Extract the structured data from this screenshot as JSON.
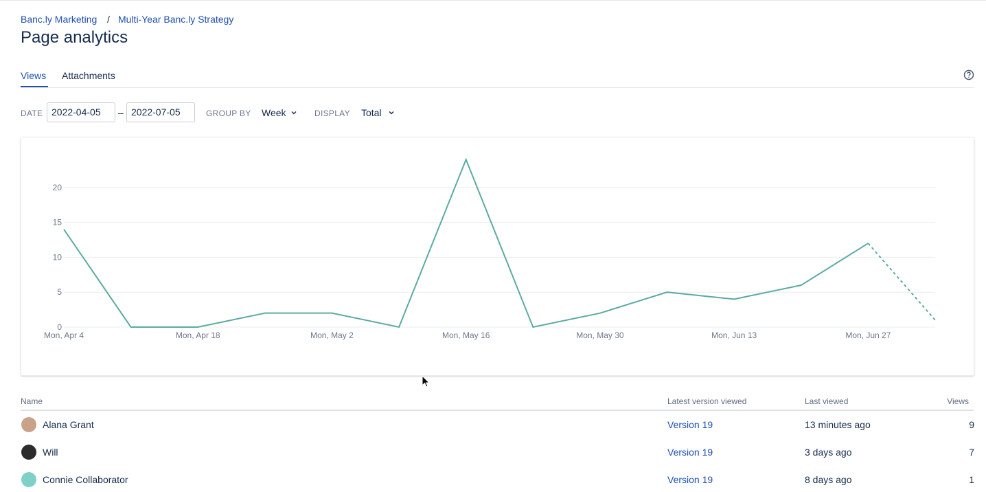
{
  "breadcrumbs": [
    "Banc.ly Marketing",
    "Multi-Year Banc.ly Strategy"
  ],
  "breadcrumb_separator": "/",
  "title": "Page analytics",
  "tabs": [
    "Views",
    "Attachments"
  ],
  "filters": {
    "date_label": "DATE",
    "date_from": "2022-04-05",
    "date_separator": "–",
    "date_to": "2022-07-05",
    "group_by_label": "GROUP BY",
    "group_by": "Week",
    "display_label": "DISPLAY",
    "display": "Total"
  },
  "chart_data": {
    "type": "line",
    "categories": [
      "Mon, Apr 4",
      null,
      "Mon, Apr 18",
      null,
      "Mon, May 2",
      null,
      "Mon, May 16",
      null,
      "Mon, May 30",
      null,
      "Mon, Jun 13",
      null,
      "Mon, Jun 27",
      null
    ],
    "values": [
      14,
      0,
      0,
      2,
      2,
      0,
      24,
      0,
      2,
      5,
      4,
      6,
      12,
      1
    ],
    "color": "#5aaba3",
    "dashed_last": true,
    "ylim": [
      0,
      25
    ],
    "yticks": [
      0,
      5,
      10,
      15,
      20
    ],
    "grid": true
  },
  "table": {
    "headers": [
      "Name",
      "Latest version viewed",
      "Last viewed",
      "Views"
    ],
    "rows": [
      [
        "Alana Grant",
        "Version 19",
        "13 minutes ago",
        "9"
      ],
      [
        "Will",
        "Version 19",
        "3 days ago",
        "7"
      ],
      [
        "Connie Collaborator",
        "Version 19",
        "8 days ago",
        "1"
      ]
    ]
  }
}
